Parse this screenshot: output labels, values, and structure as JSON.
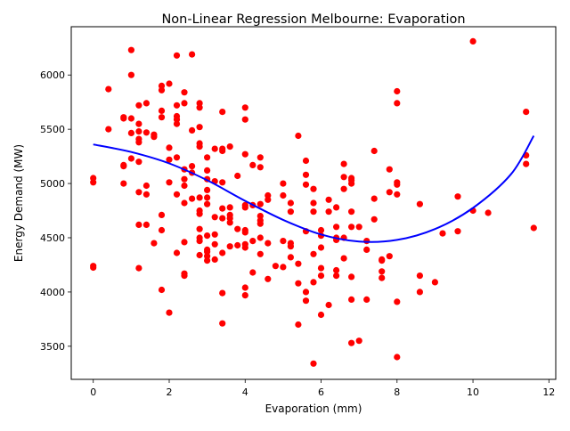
{
  "chart_data": {
    "type": "scatter",
    "title": "Non-Linear Regression Melbourne: Evaporation",
    "xlabel": "Evaporation (mm)",
    "ylabel": "Energy Demand (MW)",
    "xlim": [
      -0.58,
      12.18
    ],
    "ylim": [
      3195,
      6445
    ],
    "xticks": [
      0,
      2,
      4,
      6,
      8,
      10,
      12
    ],
    "yticks": [
      3500,
      4000,
      4500,
      5000,
      5500,
      6000
    ],
    "grid": false,
    "legend": "none",
    "series": [
      {
        "kind": "scatter",
        "color": "#ff0000",
        "points": [
          [
            0,
            5050
          ],
          [
            0,
            5010
          ],
          [
            0,
            4240
          ],
          [
            0,
            4225
          ],
          [
            0.4,
            5870
          ],
          [
            0.4,
            5500
          ],
          [
            0.8,
            5610
          ],
          [
            0.8,
            5600
          ],
          [
            0.8,
            5170
          ],
          [
            0.8,
            5160
          ],
          [
            0.8,
            5000
          ],
          [
            1,
            6230
          ],
          [
            1,
            6000
          ],
          [
            1,
            5600
          ],
          [
            1,
            5465
          ],
          [
            1,
            5230
          ],
          [
            1.2,
            5720
          ],
          [
            1.2,
            5550
          ],
          [
            1.2,
            5480
          ],
          [
            1.2,
            5410
          ],
          [
            1.2,
            5380
          ],
          [
            1.2,
            5200
          ],
          [
            1.2,
            4920
          ],
          [
            1.2,
            4620
          ],
          [
            1.2,
            4220
          ],
          [
            1.4,
            5740
          ],
          [
            1.4,
            5470
          ],
          [
            1.4,
            4980
          ],
          [
            1.4,
            4900
          ],
          [
            1.4,
            4620
          ],
          [
            1.6,
            5450
          ],
          [
            1.6,
            5430
          ],
          [
            1.6,
            4450
          ],
          [
            1.8,
            5900
          ],
          [
            1.8,
            5860
          ],
          [
            1.8,
            5670
          ],
          [
            1.8,
            5610
          ],
          [
            1.8,
            4710
          ],
          [
            1.8,
            4570
          ],
          [
            1.8,
            4020
          ],
          [
            2,
            5920
          ],
          [
            2,
            5330
          ],
          [
            2,
            5220
          ],
          [
            2,
            5010
          ],
          [
            2,
            3810
          ],
          [
            2.2,
            6180
          ],
          [
            2.2,
            5720
          ],
          [
            2.2,
            5620
          ],
          [
            2.2,
            5590
          ],
          [
            2.2,
            5550
          ],
          [
            2.2,
            5240
          ],
          [
            2.2,
            4900
          ],
          [
            2.2,
            4360
          ],
          [
            2.4,
            5840
          ],
          [
            2.4,
            5740
          ],
          [
            2.4,
            5130
          ],
          [
            2.4,
            5040
          ],
          [
            2.4,
            4980
          ],
          [
            2.4,
            4820
          ],
          [
            2.4,
            4460
          ],
          [
            2.4,
            4170
          ],
          [
            2.4,
            4150
          ],
          [
            2.6,
            6190
          ],
          [
            2.6,
            5490
          ],
          [
            2.6,
            5160
          ],
          [
            2.6,
            5100
          ],
          [
            2.6,
            4860
          ],
          [
            2.8,
            5740
          ],
          [
            2.8,
            5700
          ],
          [
            2.8,
            5520
          ],
          [
            2.8,
            5370
          ],
          [
            2.8,
            5340
          ],
          [
            2.8,
            4870
          ],
          [
            2.8,
            4750
          ],
          [
            2.8,
            4720
          ],
          [
            2.8,
            4580
          ],
          [
            2.8,
            4500
          ],
          [
            2.8,
            4470
          ],
          [
            2.8,
            4340
          ],
          [
            3,
            5240
          ],
          [
            3,
            5120
          ],
          [
            3,
            5040
          ],
          [
            3,
            4940
          ],
          [
            3,
            4870
          ],
          [
            3,
            4810
          ],
          [
            3,
            4520
          ],
          [
            3,
            4390
          ],
          [
            3,
            4370
          ],
          [
            3,
            4330
          ],
          [
            3,
            4290
          ],
          [
            3.2,
            5320
          ],
          [
            3.2,
            5020
          ],
          [
            3.2,
            4690
          ],
          [
            3.2,
            4530
          ],
          [
            3.2,
            4440
          ],
          [
            3.2,
            4300
          ],
          [
            3.4,
            5660
          ],
          [
            3.4,
            5320
          ],
          [
            3.4,
            5300
          ],
          [
            3.4,
            5010
          ],
          [
            3.4,
            4770
          ],
          [
            3.4,
            4680
          ],
          [
            3.4,
            4360
          ],
          [
            3.4,
            3990
          ],
          [
            3.4,
            3710
          ],
          [
            3.6,
            5340
          ],
          [
            3.6,
            4780
          ],
          [
            3.6,
            4710
          ],
          [
            3.6,
            4680
          ],
          [
            3.6,
            4640
          ],
          [
            3.6,
            4420
          ],
          [
            3.8,
            5070
          ],
          [
            3.8,
            4580
          ],
          [
            3.8,
            4430
          ],
          [
            4,
            5700
          ],
          [
            4,
            5590
          ],
          [
            4,
            5270
          ],
          [
            4,
            4800
          ],
          [
            4,
            4780
          ],
          [
            4,
            4570
          ],
          [
            4,
            4550
          ],
          [
            4,
            4440
          ],
          [
            4,
            4410
          ],
          [
            4,
            4040
          ],
          [
            4,
            3970
          ],
          [
            4.2,
            5170
          ],
          [
            4.2,
            4800
          ],
          [
            4.2,
            4470
          ],
          [
            4.2,
            4180
          ],
          [
            4.4,
            5240
          ],
          [
            4.4,
            5150
          ],
          [
            4.4,
            4810
          ],
          [
            4.4,
            4700
          ],
          [
            4.4,
            4660
          ],
          [
            4.4,
            4630
          ],
          [
            4.4,
            4500
          ],
          [
            4.4,
            4350
          ],
          [
            4.6,
            4890
          ],
          [
            4.6,
            4850
          ],
          [
            4.6,
            4450
          ],
          [
            4.6,
            4120
          ],
          [
            4.8,
            4240
          ],
          [
            5,
            5000
          ],
          [
            5,
            4890
          ],
          [
            5,
            4470
          ],
          [
            5,
            4230
          ],
          [
            5.2,
            4820
          ],
          [
            5.2,
            4740
          ],
          [
            5.2,
            4450
          ],
          [
            5.2,
            4420
          ],
          [
            5.2,
            4320
          ],
          [
            5.4,
            5440
          ],
          [
            5.4,
            4260
          ],
          [
            5.4,
            4080
          ],
          [
            5.4,
            3700
          ],
          [
            5.6,
            5210
          ],
          [
            5.6,
            5080
          ],
          [
            5.6,
            4990
          ],
          [
            5.6,
            4560
          ],
          [
            5.6,
            4000
          ],
          [
            5.6,
            3920
          ],
          [
            5.8,
            4950
          ],
          [
            5.8,
            4820
          ],
          [
            5.8,
            4740
          ],
          [
            5.8,
            4350
          ],
          [
            5.8,
            4090
          ],
          [
            5.8,
            3340
          ],
          [
            6,
            4570
          ],
          [
            6,
            4520
          ],
          [
            6,
            4410
          ],
          [
            6,
            4220
          ],
          [
            6,
            4150
          ],
          [
            6,
            3790
          ],
          [
            6.2,
            4850
          ],
          [
            6.2,
            4740
          ],
          [
            6.2,
            3880
          ],
          [
            6.4,
            4780
          ],
          [
            6.4,
            4600
          ],
          [
            6.4,
            4500
          ],
          [
            6.4,
            4480
          ],
          [
            6.4,
            4200
          ],
          [
            6.4,
            4150
          ],
          [
            6.6,
            5180
          ],
          [
            6.6,
            5060
          ],
          [
            6.6,
            4950
          ],
          [
            6.6,
            4500
          ],
          [
            6.6,
            4310
          ],
          [
            6.8,
            5050
          ],
          [
            6.8,
            5030
          ],
          [
            6.8,
            5000
          ],
          [
            6.8,
            4740
          ],
          [
            6.8,
            4600
          ],
          [
            6.8,
            4140
          ],
          [
            6.8,
            3930
          ],
          [
            6.8,
            3530
          ],
          [
            7,
            4600
          ],
          [
            7,
            3550
          ],
          [
            7.2,
            4470
          ],
          [
            7.2,
            4390
          ],
          [
            7.2,
            3930
          ],
          [
            7.4,
            5300
          ],
          [
            7.4,
            4860
          ],
          [
            7.4,
            4670
          ],
          [
            7.6,
            4300
          ],
          [
            7.6,
            4290
          ],
          [
            7.6,
            4190
          ],
          [
            7.6,
            4130
          ],
          [
            7.8,
            5130
          ],
          [
            7.8,
            4920
          ],
          [
            7.8,
            4330
          ],
          [
            8,
            5850
          ],
          [
            8,
            5740
          ],
          [
            8,
            5010
          ],
          [
            8,
            4990
          ],
          [
            8,
            4900
          ],
          [
            8,
            3910
          ],
          [
            8,
            3400
          ],
          [
            8.6,
            4810
          ],
          [
            8.6,
            4150
          ],
          [
            8.6,
            4000
          ],
          [
            9,
            4090
          ],
          [
            9.2,
            4540
          ],
          [
            9.6,
            4880
          ],
          [
            9.6,
            4560
          ],
          [
            10,
            6310
          ],
          [
            10,
            4750
          ],
          [
            10.4,
            4730
          ],
          [
            11.4,
            5660
          ],
          [
            11.4,
            5260
          ],
          [
            11.4,
            5180
          ],
          [
            11.6,
            4590
          ]
        ]
      },
      {
        "kind": "line",
        "color": "#0000ff",
        "points": [
          [
            0,
            5360
          ],
          [
            1,
            5290
          ],
          [
            2,
            5185
          ],
          [
            3,
            5030
          ],
          [
            4,
            4840
          ],
          [
            5,
            4665
          ],
          [
            6,
            4530
          ],
          [
            7,
            4465
          ],
          [
            8,
            4480
          ],
          [
            9,
            4580
          ],
          [
            10,
            4775
          ],
          [
            11,
            5085
          ],
          [
            11.6,
            5440
          ]
        ]
      }
    ]
  }
}
